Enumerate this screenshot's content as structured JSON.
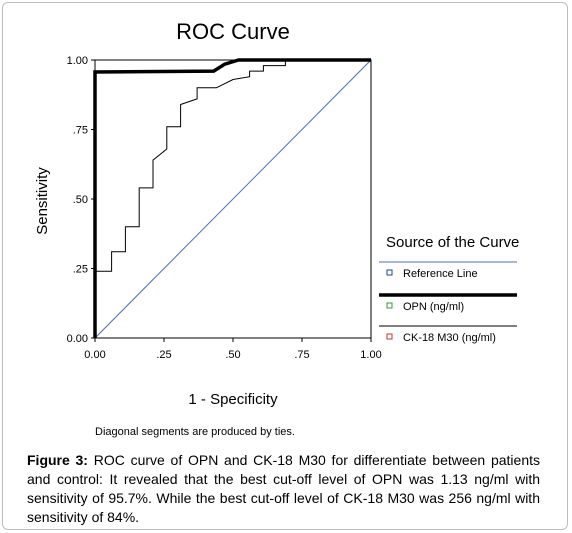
{
  "chart_data": {
    "type": "line",
    "title": "ROC Curve",
    "xlabel": "1 - Specificity",
    "ylabel": "Sensitivity",
    "xlim": [
      0,
      1
    ],
    "ylim": [
      0,
      1
    ],
    "x_ticks": [
      "0.00",
      ".25",
      ".50",
      ".75",
      "1.00"
    ],
    "y_ticks": [
      "0.00",
      ".25",
      ".50",
      ".75",
      "1.00"
    ],
    "grid": false,
    "legend_title": "Source of the Curve",
    "legend_placement": "right",
    "footnote": "Diagonal segments are produced by ties.",
    "series": [
      {
        "name": "Reference Line",
        "color": "#4a6fb5",
        "width": 1,
        "marker_color": "#1f3f9f",
        "points": [
          [
            0,
            0
          ],
          [
            1,
            1
          ]
        ]
      },
      {
        "name": "OPN (ng/ml)",
        "color": "#000000",
        "width": 3.5,
        "marker_color": "#3a9a3a",
        "points": [
          [
            0,
            0
          ],
          [
            0,
            0.957
          ],
          [
            0.43,
            0.96
          ],
          [
            0.47,
            0.985
          ],
          [
            0.52,
            1.0
          ],
          [
            1,
            1
          ]
        ]
      },
      {
        "name": "CK-18 M30 (ng/ml)",
        "color": "#000000",
        "width": 1,
        "marker_color": "#c0392b",
        "points": [
          [
            0,
            0
          ],
          [
            0,
            0.24
          ],
          [
            0.06,
            0.24
          ],
          [
            0.06,
            0.31
          ],
          [
            0.11,
            0.31
          ],
          [
            0.11,
            0.4
          ],
          [
            0.16,
            0.4
          ],
          [
            0.16,
            0.54
          ],
          [
            0.21,
            0.54
          ],
          [
            0.21,
            0.64
          ],
          [
            0.26,
            0.68
          ],
          [
            0.26,
            0.76
          ],
          [
            0.31,
            0.76
          ],
          [
            0.31,
            0.84
          ],
          [
            0.37,
            0.86
          ],
          [
            0.37,
            0.9
          ],
          [
            0.44,
            0.9
          ],
          [
            0.5,
            0.93
          ],
          [
            0.56,
            0.94
          ],
          [
            0.56,
            0.96
          ],
          [
            0.61,
            0.96
          ],
          [
            0.61,
            0.98
          ],
          [
            0.69,
            0.98
          ],
          [
            0.69,
            1.0
          ],
          [
            1,
            1
          ]
        ]
      }
    ]
  },
  "caption": {
    "label": "Figure 3:",
    "text": " ROC curve of OPN and CK-18 M30 for differentiate between patients and control: It revealed that the best cut-off level of OPN was 1.13 ng/ml with sensitivity of 95.7%. While the best cut-off level of CK-18 M30 was 256 ng/ml with sensitivity of 84%."
  }
}
